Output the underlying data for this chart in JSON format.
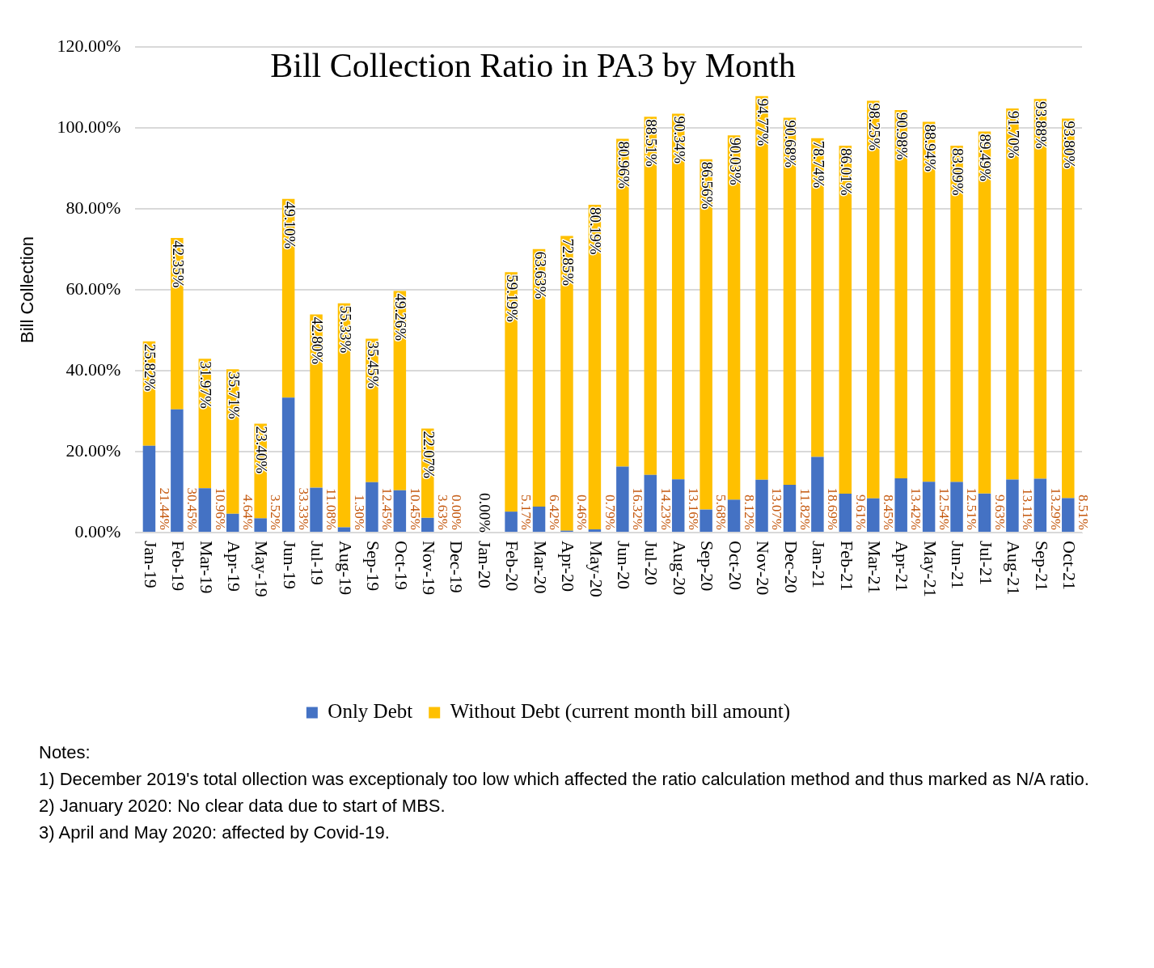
{
  "chart_data": {
    "type": "bar",
    "stacked": true,
    "title": "Bill Collection Ratio in PA3 by Month",
    "ylabel": "Bill Collection",
    "categories": [
      "Jan-19",
      "Feb-19",
      "Mar-19",
      "Apr-19",
      "May-19",
      "Jun-19",
      "Jul-19",
      "Aug-19",
      "Sep-19",
      "Oct-19",
      "Nov-19",
      "Dec-19",
      "Jan-20",
      "Feb-20",
      "Mar-20",
      "Apr-20",
      "May-20",
      "Jun-20",
      "Jul-20",
      "Aug-20",
      "Sep-20",
      "Oct-20",
      "Nov-20",
      "Dec-20",
      "Jan-21",
      "Feb-21",
      "Mar-21",
      "Apr-21",
      "May-21",
      "Jun-21",
      "Jul-21",
      "Aug-21",
      "Sep-21",
      "Oct-21"
    ],
    "series": [
      {
        "name": "Only Debt",
        "color": "#4472c4",
        "values": [
          21.44,
          30.45,
          10.96,
          4.64,
          3.52,
          33.33,
          11.08,
          1.3,
          12.45,
          10.45,
          3.63,
          0.0,
          null,
          5.17,
          6.42,
          0.46,
          0.79,
          16.32,
          14.23,
          13.16,
          5.68,
          8.12,
          13.07,
          11.82,
          18.69,
          9.61,
          8.45,
          13.42,
          12.54,
          12.51,
          9.63,
          13.11,
          13.29,
          8.51
        ],
        "value_labels": [
          "21.44%",
          "30.45%",
          "10.96%",
          "4.64%",
          "3.52%",
          "33.33%",
          "11.08%",
          "1.30%",
          "12.45%",
          "10.45%",
          "3.63%",
          "0.00%",
          null,
          "5.17%",
          "6.42%",
          "0.46%",
          "0.79%",
          "16.32%",
          "14.23%",
          "13.16%",
          "5.68%",
          "8.12%",
          "13.07%",
          "11.82%",
          "18.69%",
          "9.61%",
          "8.45%",
          "13.42%",
          "12.54%",
          "12.51%",
          "9.63%",
          "13.11%",
          "13.29%",
          "8.51%"
        ]
      },
      {
        "name": "Without Debt (current month bill amount)",
        "color": "#ffc000",
        "values": [
          25.82,
          42.35,
          31.97,
          35.71,
          23.4,
          49.1,
          42.8,
          55.33,
          35.45,
          49.26,
          22.07,
          null,
          0.0,
          59.19,
          63.63,
          72.85,
          80.19,
          80.96,
          88.51,
          90.34,
          86.56,
          90.03,
          94.77,
          90.68,
          78.74,
          86.01,
          98.25,
          90.98,
          88.94,
          83.09,
          89.49,
          91.7,
          93.88,
          93.8
        ],
        "value_labels": [
          "25.82%",
          "42.35%",
          "31.97%",
          "35.71%",
          "23.40%",
          "49.10%",
          "42.80%",
          "55.33%",
          "35.45%",
          "49.26%",
          "22.07%",
          null,
          "0.00%",
          "59.19%",
          "63.63%",
          "72.85%",
          "80.19%",
          "80.96%",
          "88.51%",
          "90.34%",
          "86.56%",
          "90.03%",
          "94.77%",
          "90.68%",
          "78.74%",
          "86.01%",
          "98.25%",
          "90.98%",
          "88.94%",
          "83.09%",
          "89.49%",
          "91.70%",
          "93.88%",
          "93.80%"
        ]
      }
    ],
    "ylim": [
      0,
      120
    ],
    "yticks": [
      {
        "value": 0,
        "label": "0.00%"
      },
      {
        "value": 20,
        "label": "20.00%"
      },
      {
        "value": 40,
        "label": "40.00%"
      },
      {
        "value": 60,
        "label": "60.00%"
      },
      {
        "value": 80,
        "label": "80.00%"
      },
      {
        "value": 100,
        "label": "100.00%"
      },
      {
        "value": 120,
        "label": "120.00%"
      }
    ],
    "grid": "y",
    "legend": "bottom",
    "annotations": [
      "Notes:",
      "1) December 2019's total ollection was exceptionaly too low which affected the ratio calculation method and thus marked as N/A ratio.",
      "2) January 2020: No clear data due to start of MBS.",
      "3) April and May 2020: affected by Covid-19."
    ]
  }
}
